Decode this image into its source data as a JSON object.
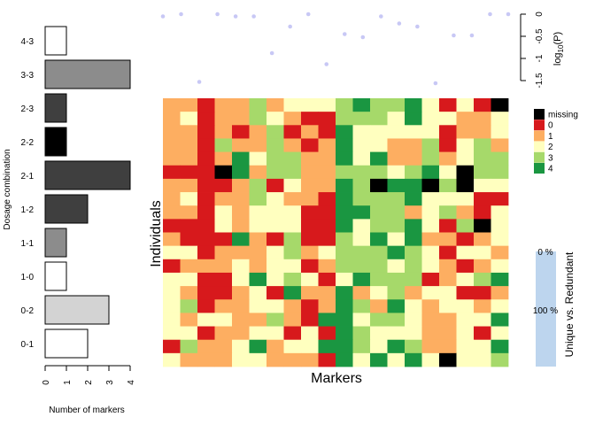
{
  "chart_data": [
    {
      "type": "bar",
      "orientation": "horizontal",
      "ylabel": "Dosage combination",
      "xlabel": "Number of markers",
      "categories": [
        "4-3",
        "3-3",
        "2-3",
        "2-2",
        "2-1",
        "1-2",
        "1-1",
        "1-0",
        "0-2",
        "0-1"
      ],
      "values": [
        1,
        4,
        1,
        1,
        4,
        2,
        1,
        1,
        3,
        2
      ],
      "fills": [
        "#ffffff",
        "#8c8c8c",
        "#3f3f3f",
        "#000000",
        "#3f3f3f",
        "#3f3f3f",
        "#8c8c8c",
        "#ffffff",
        "#d3d3d3",
        "#ffffff"
      ],
      "xlim": [
        0,
        4
      ],
      "xticks": [
        "0",
        "1",
        "2",
        "3",
        "4"
      ]
    },
    {
      "type": "scatter",
      "ylabel": "log10(P)",
      "ylabel_main": "log",
      "ylabel_sub": "10",
      "ylabel_tail": "(P)",
      "ylim": [
        -1.5,
        0
      ],
      "yticks": [
        {
          "value": -1.5,
          "label": "-1.5"
        },
        {
          "value": -1,
          "label": "-1"
        },
        {
          "value": -0.5,
          "label": "-0.5"
        },
        {
          "value": 0,
          "label": "0"
        }
      ],
      "point_color": "#c8c8f5",
      "x": [
        1,
        2,
        3,
        4,
        5,
        6,
        7,
        8,
        9,
        10,
        11,
        12,
        13,
        14,
        15,
        16,
        17,
        18,
        19,
        20
      ],
      "y": [
        -0.05,
        0,
        -1.53,
        0,
        -0.05,
        -0.05,
        -0.88,
        -0.28,
        0,
        -1.13,
        -0.45,
        -0.52,
        -0.05,
        -0.21,
        -0.28,
        -1.56,
        -0.48,
        -0.48,
        0,
        0
      ]
    },
    {
      "type": "heatmap",
      "xlabel": "Markers",
      "ylabel": "Individuals",
      "colors": {
        "missing": "#000000",
        "0": "#d7191c",
        "1": "#fdae61",
        "2": "#ffffbf",
        "3": "#a6d96a",
        "4": "#1a9641"
      },
      "legend": [
        "missing",
        "0",
        "1",
        "2",
        "3",
        "4"
      ],
      "rows": [
        [
          1,
          1,
          0,
          1,
          1,
          3,
          1,
          2,
          2,
          2,
          3,
          4,
          3,
          3,
          4,
          2,
          0,
          2,
          0,
          "missing"
        ],
        [
          1,
          2,
          0,
          1,
          1,
          3,
          2,
          1,
          0,
          0,
          3,
          3,
          3,
          2,
          4,
          2,
          2,
          1,
          1,
          2
        ],
        [
          1,
          1,
          0,
          1,
          0,
          1,
          3,
          0,
          1,
          0,
          4,
          2,
          2,
          2,
          2,
          2,
          0,
          1,
          1,
          2
        ],
        [
          1,
          1,
          0,
          3,
          1,
          1,
          3,
          1,
          0,
          1,
          4,
          2,
          2,
          1,
          1,
          3,
          0,
          2,
          3,
          1
        ],
        [
          1,
          1,
          0,
          1,
          4,
          2,
          3,
          3,
          1,
          1,
          4,
          2,
          4,
          1,
          1,
          3,
          1,
          2,
          3,
          3
        ],
        [
          0,
          0,
          0,
          "missing",
          4,
          1,
          3,
          3,
          1,
          1,
          3,
          3,
          3,
          2,
          3,
          4,
          2,
          "missing",
          3,
          3
        ],
        [
          1,
          1,
          0,
          0,
          1,
          3,
          0,
          2,
          1,
          1,
          4,
          3,
          "missing",
          4,
          4,
          "missing",
          3,
          "missing",
          2,
          2
        ],
        [
          1,
          2,
          0,
          1,
          1,
          3,
          2,
          1,
          1,
          0,
          4,
          3,
          3,
          3,
          4,
          2,
          2,
          2,
          0,
          0
        ],
        [
          1,
          1,
          0,
          2,
          1,
          2,
          2,
          2,
          0,
          0,
          4,
          4,
          3,
          3,
          1,
          2,
          3,
          1,
          0,
          2
        ],
        [
          0,
          0,
          0,
          2,
          1,
          2,
          2,
          2,
          0,
          0,
          4,
          2,
          3,
          3,
          4,
          2,
          0,
          3,
          "missing",
          2
        ],
        [
          1,
          0,
          0,
          0,
          4,
          1,
          0,
          3,
          0,
          0,
          3,
          2,
          4,
          2,
          4,
          1,
          1,
          0,
          1,
          2
        ],
        [
          2,
          2,
          0,
          1,
          1,
          1,
          2,
          3,
          1,
          2,
          3,
          3,
          3,
          4,
          3,
          2,
          0,
          2,
          2,
          1
        ],
        [
          0,
          1,
          1,
          1,
          2,
          1,
          2,
          2,
          0,
          1,
          3,
          3,
          3,
          2,
          3,
          2,
          1,
          0,
          1,
          2
        ],
        [
          2,
          2,
          0,
          0,
          2,
          4,
          2,
          3,
          2,
          0,
          2,
          4,
          3,
          3,
          3,
          0,
          1,
          2,
          3,
          4
        ],
        [
          2,
          1,
          0,
          0,
          1,
          2,
          0,
          4,
          1,
          1,
          4,
          1,
          2,
          3,
          1,
          2,
          2,
          0,
          0,
          1
        ],
        [
          2,
          3,
          0,
          1,
          1,
          2,
          2,
          1,
          0,
          1,
          4,
          3,
          1,
          4,
          2,
          1,
          2,
          2,
          1,
          2
        ],
        [
          2,
          1,
          2,
          2,
          1,
          1,
          3,
          1,
          0,
          4,
          4,
          2,
          3,
          3,
          2,
          1,
          1,
          2,
          2,
          4
        ],
        [
          2,
          2,
          0,
          1,
          1,
          2,
          2,
          0,
          2,
          0,
          4,
          3,
          2,
          2,
          2,
          1,
          1,
          2,
          0,
          2
        ],
        [
          0,
          3,
          1,
          1,
          2,
          4,
          1,
          2,
          2,
          4,
          4,
          3,
          2,
          4,
          3,
          1,
          1,
          2,
          2,
          4
        ],
        [
          2,
          1,
          1,
          1,
          2,
          2,
          1,
          1,
          1,
          0,
          4,
          2,
          4,
          2,
          4,
          2,
          "missing",
          2,
          2,
          3
        ]
      ]
    },
    {
      "type": "bar",
      "ylabel": "Unique vs. Redundant",
      "ticks": [
        "0 %",
        "100 %"
      ],
      "values": [
        100
      ],
      "fill": "#bdd5ee"
    }
  ]
}
